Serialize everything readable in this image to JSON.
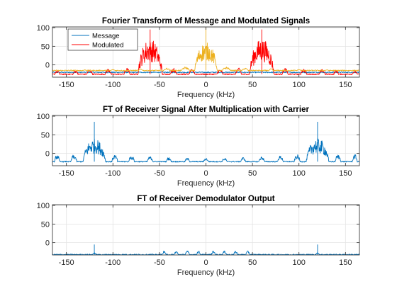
{
  "chart_data": [
    {
      "type": "line",
      "title": "Fourier Transform of Message and Modulated Signals",
      "xlabel": "Frequency (kHz)",
      "ylabel": "",
      "xlim": [
        -165,
        165
      ],
      "ylim": [
        -33,
        102
      ],
      "xticks": [
        -150,
        -100,
        -50,
        0,
        50,
        100,
        150
      ],
      "yticks": [
        0,
        50,
        100
      ],
      "xtick_labels": [
        "-150",
        "-100",
        "-50",
        "0",
        "50",
        "100",
        "150"
      ],
      "ytick_labels": [
        "0",
        "50",
        "100"
      ],
      "grid": true,
      "legend": {
        "placement": "top-left",
        "entries": [
          "Message",
          "Modulated"
        ]
      },
      "series": [
        {
          "name": "Message",
          "color": "#0072BD",
          "floor": -20,
          "lobes": [],
          "spikes": []
        },
        {
          "name": "Modulated",
          "color": "#FF0000",
          "floor": -25,
          "lobes": [
            {
              "c": -60,
              "w": 13,
              "peak": 70
            },
            {
              "c": 60,
              "w": 13,
              "peak": 70
            },
            {
              "c": -85,
              "w": 3,
              "peak": -8
            },
            {
              "c": -105,
              "w": 3,
              "peak": -10
            },
            {
              "c": -125,
              "w": 3,
              "peak": -12
            },
            {
              "c": -140,
              "w": 2.5,
              "peak": -14
            },
            {
              "c": -160,
              "w": 2.5,
              "peak": -15
            },
            {
              "c": -35,
              "w": 3,
              "peak": -8
            },
            {
              "c": -15,
              "w": 3,
              "peak": -12
            },
            {
              "c": 35,
              "w": 3,
              "peak": -8
            },
            {
              "c": 15,
              "w": 3,
              "peak": -12
            },
            {
              "c": 85,
              "w": 3,
              "peak": -8
            },
            {
              "c": 105,
              "w": 3,
              "peak": -10
            },
            {
              "c": 125,
              "w": 3,
              "peak": -12
            },
            {
              "c": 140,
              "w": 2.5,
              "peak": -14
            },
            {
              "c": 160,
              "w": 2.5,
              "peak": -15
            }
          ],
          "spikes": [
            {
              "x": -60,
              "y": 95
            },
            {
              "x": 60,
              "y": 95
            }
          ]
        },
        {
          "name": "",
          "color": "#EDB120",
          "floor": -15,
          "lobes": [
            {
              "c": 0,
              "w": 12,
              "peak": 60
            },
            {
              "c": -22,
              "w": 4,
              "peak": -5
            },
            {
              "c": 22,
              "w": 4,
              "peak": -5
            },
            {
              "c": -42,
              "w": 3,
              "peak": -8
            },
            {
              "c": 42,
              "w": 3,
              "peak": -8
            },
            {
              "c": -70,
              "w": 2,
              "peak": -10
            },
            {
              "c": 70,
              "w": 2,
              "peak": -10
            },
            {
              "c": -100,
              "w": 2,
              "peak": -12
            },
            {
              "c": 100,
              "w": 2,
              "peak": -12
            },
            {
              "c": -130,
              "w": 2,
              "peak": -13
            },
            {
              "c": 130,
              "w": 2,
              "peak": -13
            }
          ],
          "spikes": [
            {
              "x": 0,
              "y": 100
            }
          ]
        }
      ]
    },
    {
      "type": "line",
      "title": "FT of Receiver Signal After Multiplication with Carrier",
      "xlabel": "Frequency (kHz)",
      "ylabel": "",
      "xlim": [
        -165,
        165
      ],
      "ylim": [
        -33,
        102
      ],
      "xticks": [
        -150,
        -100,
        -50,
        0,
        50,
        100,
        150
      ],
      "yticks": [
        0,
        50,
        100
      ],
      "xtick_labels": [
        "-150",
        "-100",
        "-50",
        "0",
        "50",
        "100",
        "150"
      ],
      "ytick_labels": [
        "0",
        "50",
        "100"
      ],
      "grid": true,
      "series": [
        {
          "name": "",
          "color": "#0072BD",
          "floor": -22,
          "lobes": [
            {
              "c": -120,
              "w": 12,
              "peak": 40
            },
            {
              "c": 120,
              "w": 12,
              "peak": 40
            },
            {
              "c": -160,
              "w": 2.5,
              "peak": -2
            },
            {
              "c": -142,
              "w": 3,
              "peak": -3
            },
            {
              "c": -98,
              "w": 3,
              "peak": -3
            },
            {
              "c": -80,
              "w": 3,
              "peak": -6
            },
            {
              "c": -60,
              "w": 3,
              "peak": -8
            },
            {
              "c": -40,
              "w": 2.5,
              "peak": -10
            },
            {
              "c": -20,
              "w": 2.5,
              "peak": -12
            },
            {
              "c": 0,
              "w": 2.5,
              "peak": -12
            },
            {
              "c": 20,
              "w": 2.5,
              "peak": -12
            },
            {
              "c": 40,
              "w": 2.5,
              "peak": -10
            },
            {
              "c": 60,
              "w": 3,
              "peak": -8
            },
            {
              "c": 80,
              "w": 3,
              "peak": -6
            },
            {
              "c": 98,
              "w": 3,
              "peak": -3
            },
            {
              "c": 142,
              "w": 3,
              "peak": -3
            },
            {
              "c": 160,
              "w": 2.5,
              "peak": -2
            }
          ],
          "spikes": [
            {
              "x": -120,
              "y": 85
            },
            {
              "x": 120,
              "y": 85
            }
          ]
        }
      ]
    },
    {
      "type": "line",
      "title": "FT of Receiver Demodulator Output",
      "xlabel": "Frequency (kHz)",
      "ylabel": "",
      "xlim": [
        -165,
        165
      ],
      "ylim": [
        -33,
        102
      ],
      "xticks": [
        -150,
        -100,
        -50,
        0,
        50,
        100,
        150
      ],
      "yticks": [
        0,
        50,
        100
      ],
      "xtick_labels": [
        "-150",
        "-100",
        "-50",
        "0",
        "50",
        "100",
        "150"
      ],
      "ytick_labels": [
        "0",
        "50",
        "100"
      ],
      "grid": true,
      "series": [
        {
          "name": "",
          "color": "#0072BD",
          "floor": -32,
          "lobes": [
            {
              "c": -120,
              "w": 2,
              "peak": -27
            },
            {
              "c": 120,
              "w": 2,
              "peak": -27
            },
            {
              "c": -45,
              "w": 2,
              "peak": -22
            },
            {
              "c": -32,
              "w": 2,
              "peak": -22
            },
            {
              "c": -20,
              "w": 2.2,
              "peak": -22
            },
            {
              "c": -8,
              "w": 2,
              "peak": -22
            },
            {
              "c": 8,
              "w": 2,
              "peak": -22
            },
            {
              "c": 20,
              "w": 2.2,
              "peak": -22
            },
            {
              "c": 32,
              "w": 2,
              "peak": -22
            },
            {
              "c": 45,
              "w": 2,
              "peak": -22
            }
          ],
          "spikes": [
            {
              "x": -120,
              "y": -5
            },
            {
              "x": 120,
              "y": -5
            }
          ]
        }
      ]
    }
  ]
}
